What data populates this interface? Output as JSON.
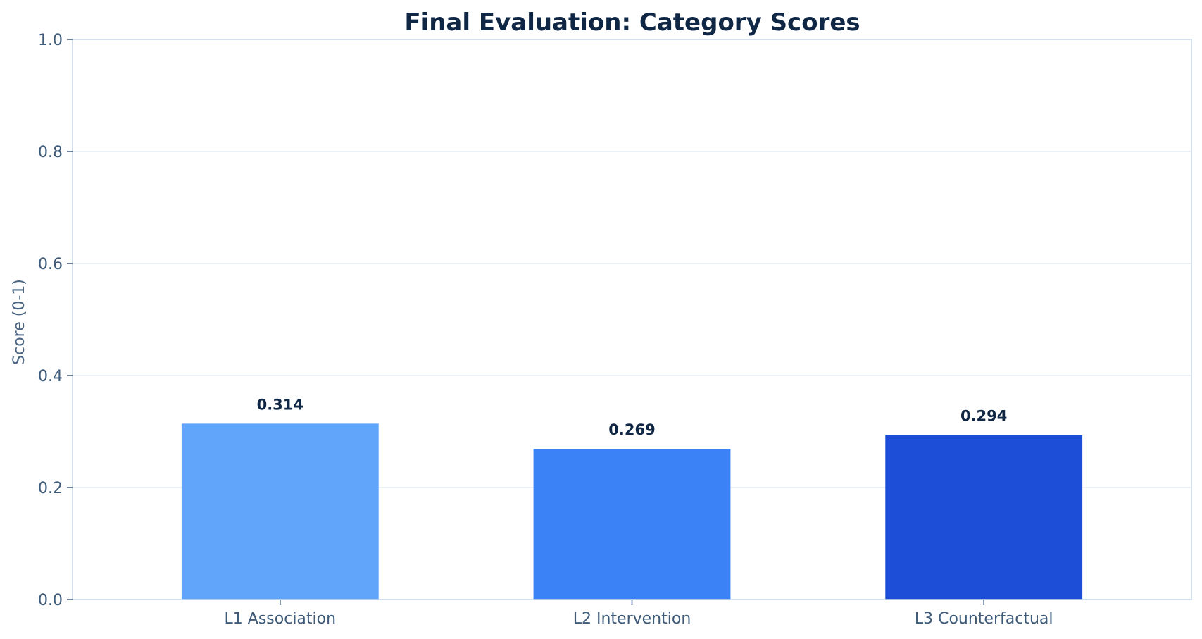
{
  "chart_data": {
    "type": "bar",
    "title": "Final Evaluation: Category Scores",
    "xlabel": "",
    "ylabel": "Score (0-1)",
    "categories": [
      "L1 Association",
      "L2 Intervention",
      "L3 Counterfactual"
    ],
    "values": [
      0.314,
      0.269,
      0.294
    ],
    "value_labels": [
      "0.314",
      "0.269",
      "0.294"
    ],
    "colors": [
      "#60a5fa",
      "#3b82f6",
      "#1d4ed8"
    ],
    "ylim": [
      0,
      1.0
    ],
    "yticks": [
      0.0,
      0.2,
      0.4,
      0.6,
      0.8,
      1.0
    ],
    "ytick_labels": [
      "0.0",
      "0.2",
      "0.4",
      "0.6",
      "0.8",
      "1.0"
    ],
    "grid": true,
    "legend": "none"
  }
}
